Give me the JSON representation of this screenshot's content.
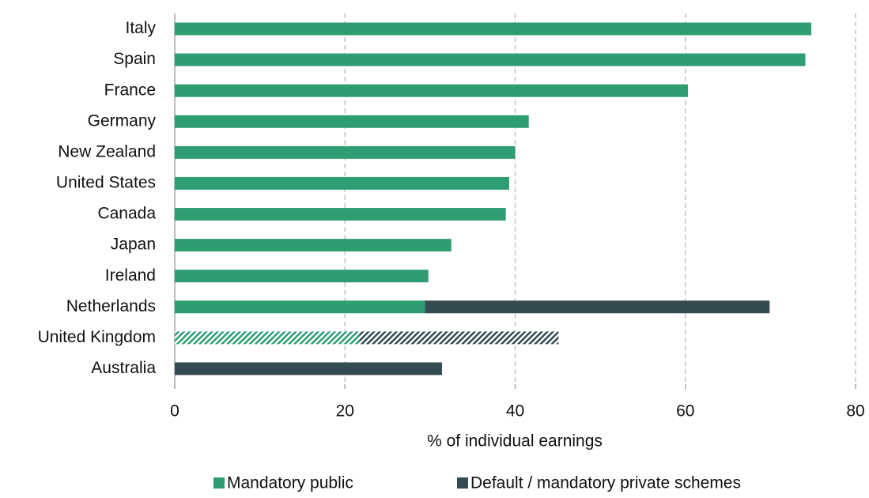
{
  "chart_data": {
    "type": "bar",
    "orientation": "horizontal",
    "stacked": true,
    "categories": [
      "Italy",
      "Spain",
      "France",
      "Germany",
      "New Zealand",
      "United States",
      "Canada",
      "Japan",
      "Ireland",
      "Netherlands",
      "United Kingdom",
      "Australia"
    ],
    "series": [
      {
        "name": "Mandatory public",
        "color": "#2e9e72",
        "values": [
          74.8,
          74.1,
          60.3,
          41.6,
          40.0,
          39.3,
          38.9,
          32.5,
          29.8,
          29.4,
          21.7,
          0
        ]
      },
      {
        "name": "Default / mandatory private schemes",
        "color": "#344b52",
        "values": [
          0,
          0,
          0,
          0,
          0,
          0,
          0,
          0,
          0,
          40.5,
          23.4,
          31.4
        ]
      }
    ],
    "hatched": [
      10
    ],
    "xlabel": "% of individual earnings",
    "xlim": [
      0,
      80
    ],
    "xticks": [
      0,
      20,
      40,
      60,
      80
    ],
    "grid": true,
    "legend": "bottom"
  }
}
